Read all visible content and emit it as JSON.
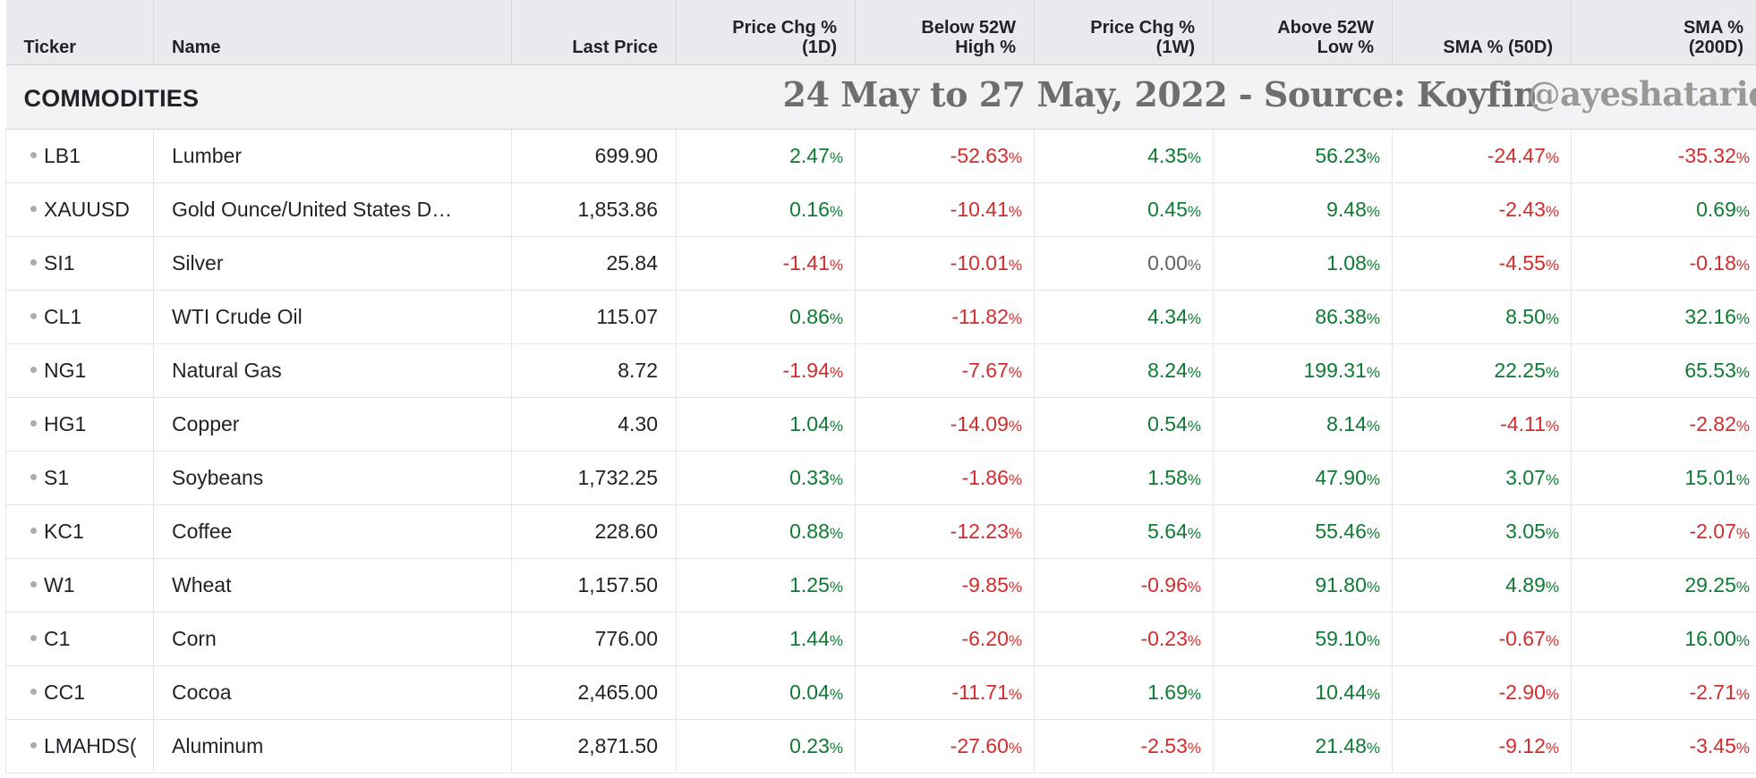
{
  "columns": [
    {
      "lines": [
        "Ticker"
      ],
      "align": "left"
    },
    {
      "lines": [
        "Name"
      ],
      "align": "left"
    },
    {
      "lines": [
        "Last Price"
      ],
      "align": "right"
    },
    {
      "lines": [
        "Price Chg %",
        "(1D)"
      ],
      "align": "right"
    },
    {
      "lines": [
        "Below 52W",
        "High %"
      ],
      "align": "right"
    },
    {
      "lines": [
        "Price Chg %",
        "(1W)"
      ],
      "align": "right"
    },
    {
      "lines": [
        "Above 52W",
        "Low %"
      ],
      "align": "right"
    },
    {
      "lines": [
        "SMA % (50D)"
      ],
      "align": "right"
    },
    {
      "lines": [
        "SMA %",
        "(200D)"
      ],
      "align": "right"
    }
  ],
  "group": {
    "label": "COMMODITIES",
    "watermark": "24 May to 27 May, 2022 - Source: Koyfin",
    "handle": "@ayeshatariq"
  },
  "colors": {
    "positive": "#0f7a33",
    "negative": "#d22d2d",
    "neutral": "#5e6166"
  },
  "rows": [
    {
      "ticker": "LB1",
      "name": "Lumber",
      "last_price": "699.90",
      "chg_1d": "2.47",
      "below_52w_high": "-52.63",
      "chg_1w": "4.35",
      "above_52w_low": "56.23",
      "sma_50d": "-24.47",
      "sma_200d": "-35.32"
    },
    {
      "ticker": "XAUUSD",
      "name": "Gold Ounce/United States D…",
      "last_price": "1,853.86",
      "chg_1d": "0.16",
      "below_52w_high": "-10.41",
      "chg_1w": "0.45",
      "above_52w_low": "9.48",
      "sma_50d": "-2.43",
      "sma_200d": "0.69"
    },
    {
      "ticker": "SI1",
      "name": "Silver",
      "last_price": "25.84",
      "chg_1d": "-1.41",
      "below_52w_high": "-10.01",
      "chg_1w": "0.00",
      "above_52w_low": "1.08",
      "sma_50d": "-4.55",
      "sma_200d": "-0.18"
    },
    {
      "ticker": "CL1",
      "name": "WTI Crude Oil",
      "last_price": "115.07",
      "chg_1d": "0.86",
      "below_52w_high": "-11.82",
      "chg_1w": "4.34",
      "above_52w_low": "86.38",
      "sma_50d": "8.50",
      "sma_200d": "32.16"
    },
    {
      "ticker": "NG1",
      "name": "Natural Gas",
      "last_price": "8.72",
      "chg_1d": "-1.94",
      "below_52w_high": "-7.67",
      "chg_1w": "8.24",
      "above_52w_low": "199.31",
      "sma_50d": "22.25",
      "sma_200d": "65.53"
    },
    {
      "ticker": "HG1",
      "name": "Copper",
      "last_price": "4.30",
      "chg_1d": "1.04",
      "below_52w_high": "-14.09",
      "chg_1w": "0.54",
      "above_52w_low": "8.14",
      "sma_50d": "-4.11",
      "sma_200d": "-2.82"
    },
    {
      "ticker": "S1",
      "name": "Soybeans",
      "last_price": "1,732.25",
      "chg_1d": "0.33",
      "below_52w_high": "-1.86",
      "chg_1w": "1.58",
      "above_52w_low": "47.90",
      "sma_50d": "3.07",
      "sma_200d": "15.01"
    },
    {
      "ticker": "KC1",
      "name": "Coffee",
      "last_price": "228.60",
      "chg_1d": "0.88",
      "below_52w_high": "-12.23",
      "chg_1w": "5.64",
      "above_52w_low": "55.46",
      "sma_50d": "3.05",
      "sma_200d": "-2.07"
    },
    {
      "ticker": "W1",
      "name": "Wheat",
      "last_price": "1,157.50",
      "chg_1d": "1.25",
      "below_52w_high": "-9.85",
      "chg_1w": "-0.96",
      "above_52w_low": "91.80",
      "sma_50d": "4.89",
      "sma_200d": "29.25"
    },
    {
      "ticker": "C1",
      "name": "Corn",
      "last_price": "776.00",
      "chg_1d": "1.44",
      "below_52w_high": "-6.20",
      "chg_1w": "-0.23",
      "above_52w_low": "59.10",
      "sma_50d": "-0.67",
      "sma_200d": "16.00"
    },
    {
      "ticker": "CC1",
      "name": "Cocoa",
      "last_price": "2,465.00",
      "chg_1d": "0.04",
      "below_52w_high": "-11.71",
      "chg_1w": "1.69",
      "above_52w_low": "10.44",
      "sma_50d": "-2.90",
      "sma_200d": "-2.71"
    },
    {
      "ticker": "LMAHDS(",
      "name": "Aluminum",
      "last_price": "2,871.50",
      "chg_1d": "0.23",
      "below_52w_high": "-27.60",
      "chg_1w": "-2.53",
      "above_52w_low": "21.48",
      "sma_50d": "-9.12",
      "sma_200d": "-3.45"
    }
  ]
}
